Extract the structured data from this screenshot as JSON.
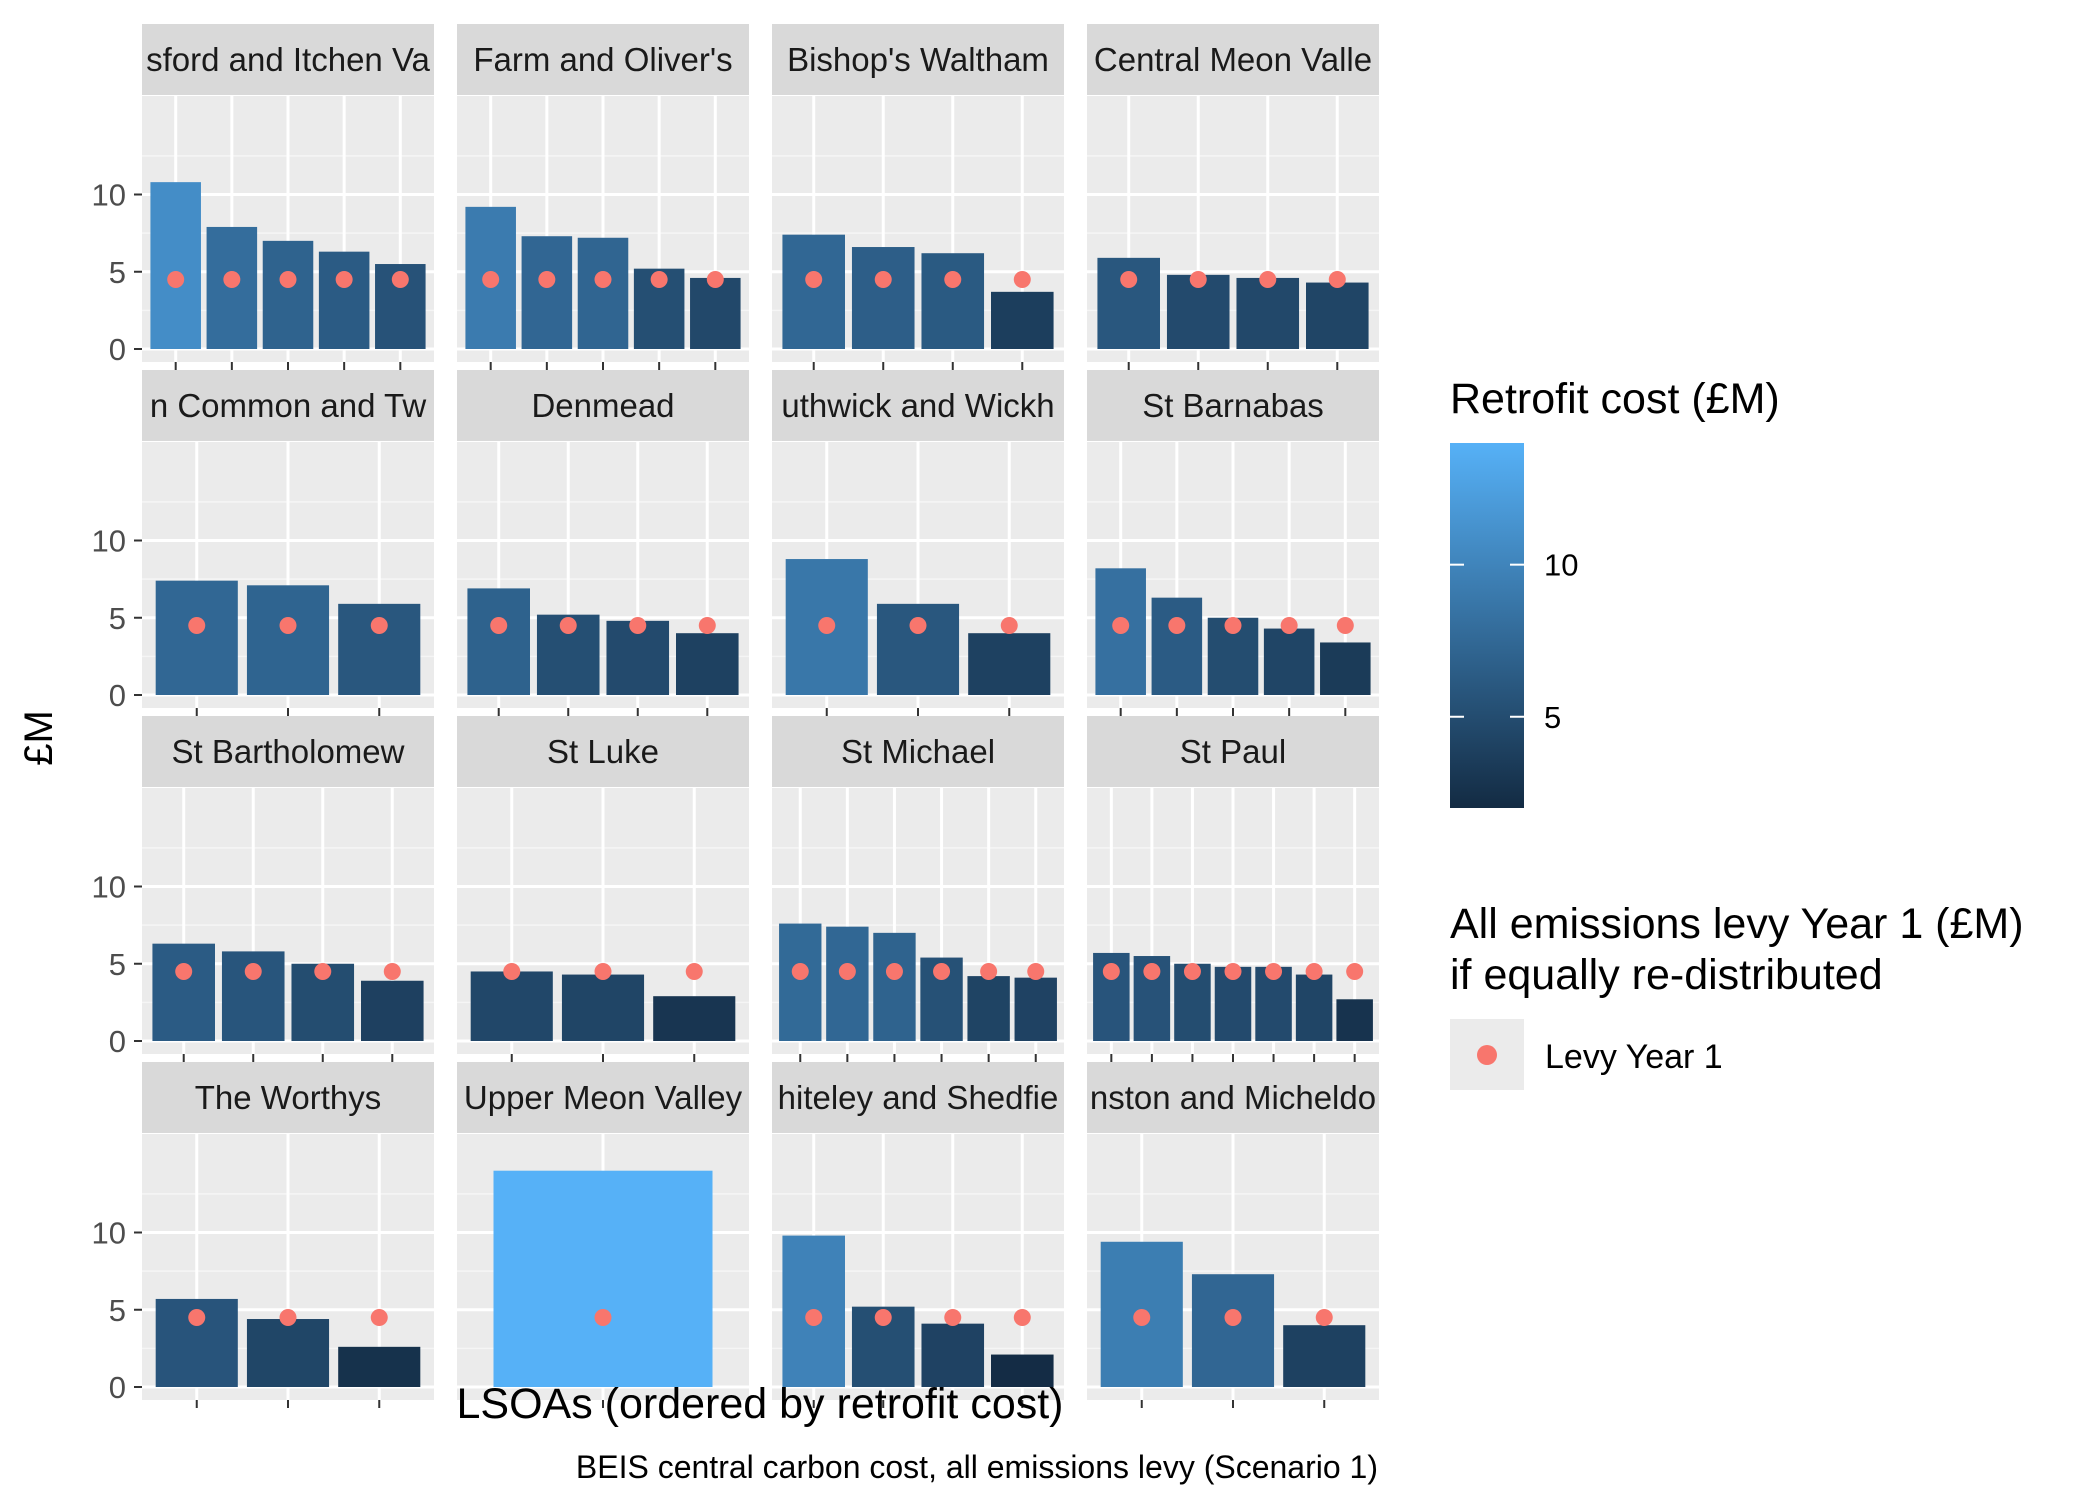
{
  "chart_data": {
    "type": "bar",
    "xlabel": "LSOAs (ordered by retrofit cost)",
    "ylabel": "£M",
    "caption": "BEIS central carbon cost, all emissions levy (Scenario 1)",
    "ylim": [
      0,
      14.2
    ],
    "yticks": [
      0,
      5,
      10
    ],
    "grid": true,
    "legend_position": "right",
    "legend_fill": {
      "title": "Retrofit cost (£M)",
      "breaks": [
        5,
        10
      ],
      "range": [
        2,
        14
      ],
      "low_color": "#132B43",
      "high_color": "#56B1F7"
    },
    "legend_point": {
      "title_line1": "All emissions levy Year 1 (£M)",
      "title_line2": "if equally re-distributed",
      "label": "Levy Year 1",
      "color": "#F8766D"
    },
    "levy_value": 4.5,
    "panels": [
      {
        "title": "sford and Itchen Va",
        "values": [
          10.8,
          7.9,
          7.0,
          6.3,
          5.5
        ]
      },
      {
        "title": "Farm and Oliver's",
        "values": [
          9.2,
          7.3,
          7.2,
          5.2,
          4.6
        ]
      },
      {
        "title": "Bishop's Waltham",
        "values": [
          7.4,
          6.6,
          6.2,
          3.7
        ]
      },
      {
        "title": "Central Meon Valle",
        "values": [
          5.9,
          4.8,
          4.6,
          4.3
        ]
      },
      {
        "title": "n Common and Tw",
        "values": [
          7.4,
          7.1,
          5.9
        ]
      },
      {
        "title": "Denmead",
        "values": [
          6.9,
          5.2,
          4.8,
          4.0
        ]
      },
      {
        "title": "uthwick and Wickh",
        "values": [
          8.8,
          5.9,
          4.0
        ]
      },
      {
        "title": "St Barnabas",
        "values": [
          8.2,
          6.3,
          5.0,
          4.3,
          3.4
        ]
      },
      {
        "title": "St Bartholomew",
        "values": [
          6.3,
          5.8,
          5.0,
          3.9
        ]
      },
      {
        "title": "St Luke",
        "values": [
          4.5,
          4.3,
          2.9
        ]
      },
      {
        "title": "St Michael",
        "values": [
          7.6,
          7.4,
          7.0,
          5.4,
          4.2,
          4.1
        ]
      },
      {
        "title": "St Paul",
        "values": [
          5.7,
          5.5,
          5.0,
          4.8,
          4.8,
          4.3,
          2.7
        ]
      },
      {
        "title": "The Worthys",
        "values": [
          5.7,
          4.4,
          2.6
        ]
      },
      {
        "title": "Upper Meon Valley",
        "values": [
          14.0
        ]
      },
      {
        "title": "hiteley and Shedfie",
        "values": [
          9.8,
          5.2,
          4.1,
          2.1
        ]
      },
      {
        "title": "nston and Micheldo",
        "values": [
          9.4,
          7.3,
          4.0
        ]
      }
    ]
  }
}
